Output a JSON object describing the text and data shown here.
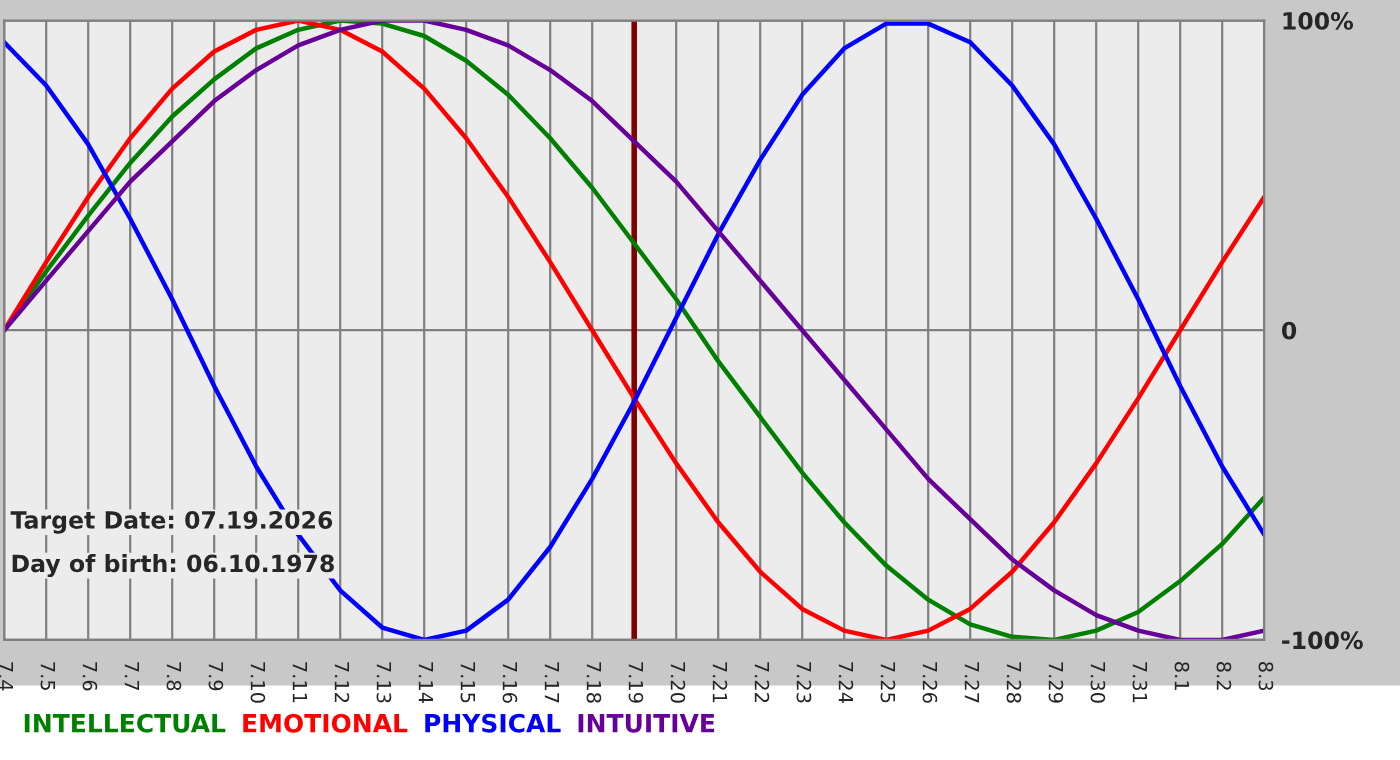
{
  "chart_data": {
    "type": "line",
    "categories": [
      "7.4",
      "7.5",
      "7.6",
      "7.7",
      "7.8",
      "7.9",
      "7.10",
      "7.11",
      "7.12",
      "7.13",
      "7.14",
      "7.15",
      "7.16",
      "7.17",
      "7.18",
      "7.19",
      "7.20",
      "7.21",
      "7.22",
      "7.23",
      "7.24",
      "7.25",
      "7.26",
      "7.27",
      "7.28",
      "7.29",
      "7.30",
      "7.31",
      "8.1",
      "8.2",
      "8.3"
    ],
    "series": [
      {
        "name": "INTELLECTUAL",
        "color": "#008000",
        "values": [
          0,
          19,
          37,
          54,
          69,
          81,
          91,
          97,
          100,
          99,
          95,
          87,
          76,
          62,
          46,
          28,
          10,
          -10,
          -28,
          -46,
          -62,
          -76,
          -87,
          -95,
          -99,
          -100,
          -97,
          -91,
          -81,
          -69,
          -54
        ]
      },
      {
        "name": "EMOTIONAL",
        "color": "#ff0000",
        "values": [
          0,
          22,
          43,
          62,
          78,
          90,
          97,
          100,
          97,
          90,
          78,
          62,
          43,
          22,
          0,
          -22,
          -43,
          -62,
          -78,
          -90,
          -97,
          -100,
          -97,
          -90,
          -78,
          -62,
          -43,
          -22,
          0,
          22,
          43
        ]
      },
      {
        "name": "PHYSICAL",
        "color": "#0000ff",
        "values": [
          93,
          79,
          60,
          36,
          10,
          -18,
          -44,
          -66,
          -84,
          -96,
          -100,
          -97,
          -87,
          -70,
          -48,
          -23,
          4,
          31,
          55,
          76,
          91,
          99,
          99,
          93,
          79,
          60,
          36,
          10,
          -18,
          -44,
          -66
        ]
      },
      {
        "name": "INTUITIVE",
        "color": "#660099",
        "values": [
          0,
          16,
          32,
          48,
          61,
          74,
          84,
          92,
          97,
          100,
          100,
          97,
          92,
          84,
          74,
          61,
          48,
          32,
          16,
          0,
          -16,
          -32,
          -48,
          -61,
          -74,
          -84,
          -92,
          -97,
          -100,
          -100,
          -97
        ]
      }
    ],
    "ylim": [
      -100,
      100
    ],
    "yticks": [
      {
        "value": 100,
        "label": "100%"
      },
      0,
      {
        "value": -100,
        "label": "-100%"
      }
    ],
    "ref_lines": [
      {
        "axis": "x",
        "value": "7.19",
        "color": "#800000"
      }
    ],
    "annotations": [
      "Target Date: 07.19.2026",
      "Day of birth: 06.10.1978"
    ],
    "grid": true,
    "legend": "bottom left",
    "line_style": "solid",
    "marker": "none"
  }
}
